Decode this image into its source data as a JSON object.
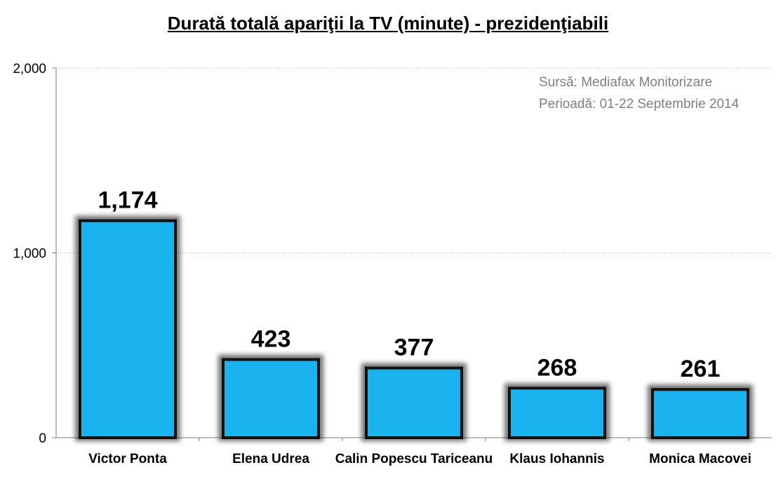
{
  "chart_data": {
    "type": "bar",
    "title": "Durată totală apariţii la TV (minute) - prezidenţiabili",
    "source_lines": [
      "Sursă: Mediafax Monitorizare",
      "Perioadă: 01-22 Septembrie 2014"
    ],
    "categories": [
      "Victor Ponta",
      "Elena Udrea",
      "Calin Popescu Tariceanu",
      "Klaus Iohannis",
      "Monica Macovei"
    ],
    "values": [
      1174,
      423,
      377,
      268,
      261
    ],
    "value_labels": [
      "1,174",
      "423",
      "377",
      "268",
      "261"
    ],
    "yticks": [
      0,
      1000,
      2000
    ],
    "ytick_labels": [
      "0",
      "1,000",
      "2,000"
    ],
    "ylim": [
      0,
      2000
    ],
    "xlabel": "",
    "ylabel": "",
    "grid": true,
    "bar_color": "#1ab2ef",
    "bar_edge_color": "#111111"
  }
}
